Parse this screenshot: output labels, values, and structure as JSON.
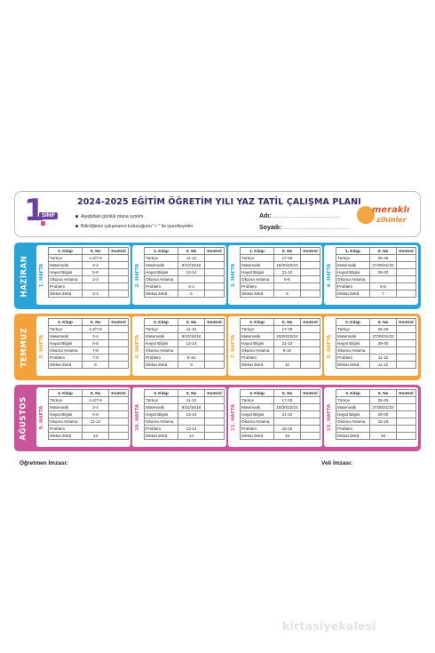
{
  "header": {
    "grade_number": "1",
    "grade_label": "SINIF",
    "title": "2024-2025 EĞİTİM ÖĞRETİM YILI YAZ TATİL ÇALIŞMA PLANI",
    "instruction_1": "Aşağıdaki günlük plana uyalım.",
    "instruction_2": "Bitirdiğimiz çalışmanın kutucuğunu \"✓\" ile işaretleyelim.",
    "name_label": "Adı:",
    "surname_label": "Soyadı:",
    "dots": "......................................",
    "logo_line1": "meraklı",
    "logo_line2": "zihinler"
  },
  "colors": {
    "haziran": "#2aa3d6",
    "temmuz": "#f3a13a",
    "agustos": "#c8559a"
  },
  "table_headers": {
    "subject": "",
    "pages": "S. No",
    "check": "Kontrol"
  },
  "months": [
    {
      "name": "HAZİRAN",
      "color": "#2aa3d6",
      "weeks": [
        {
          "label": "1. HAFTA",
          "book": "1. Kitap",
          "rows": [
            {
              "s": "Türkçe",
              "p": "1-2/7-8"
            },
            {
              "s": "Matematik",
              "p": "3-4"
            },
            {
              "s": "Hayat Bilgisi",
              "p": "5-6"
            },
            {
              "s": "Okuma Anlama",
              "p": "3-4"
            },
            {
              "s": "Problem",
              "p": ""
            },
            {
              "s": "Dikkat Zekâ",
              "p": "3-4"
            }
          ]
        },
        {
          "label": "2. HAFTA",
          "book": "1. Kitap",
          "rows": [
            {
              "s": "Türkçe",
              "p": "11-12"
            },
            {
              "s": "Matematik",
              "p": "9/10/15/16"
            },
            {
              "s": "Hayat Bilgisi",
              "p": "13-14"
            },
            {
              "s": "Okuma Anlama",
              "p": ""
            },
            {
              "s": "Problem",
              "p": "3-4"
            },
            {
              "s": "Dikkat Zekâ",
              "p": "5"
            }
          ]
        },
        {
          "label": "3. HAFTA",
          "book": "1. Kitap",
          "rows": [
            {
              "s": "Türkçe",
              "p": "17-18"
            },
            {
              "s": "Matematik",
              "p": "19/20/23/24"
            },
            {
              "s": "Hayat Bilgisi",
              "p": "21-22"
            },
            {
              "s": "Okuma Anlama",
              "p": "5-6"
            },
            {
              "s": "Problem",
              "p": ""
            },
            {
              "s": "Dikkat Zekâ",
              "p": "6"
            }
          ]
        },
        {
          "label": "4. HAFTA",
          "book": "1. Kitap",
          "rows": [
            {
              "s": "Türkçe",
              "p": "25-26"
            },
            {
              "s": "Matematik",
              "p": "27/28/31/32"
            },
            {
              "s": "Hayat Bilgisi",
              "p": "29-30"
            },
            {
              "s": "Okuma Anlama",
              "p": ""
            },
            {
              "s": "Problem",
              "p": "5-6"
            },
            {
              "s": "Dikkat Zekâ",
              "p": "7"
            }
          ]
        }
      ]
    },
    {
      "name": "TEMMUZ",
      "color": "#f3a13a",
      "weeks": [
        {
          "label": "5. HAFTA",
          "book": "2. Kitap",
          "rows": [
            {
              "s": "Türkçe",
              "p": "1-2/7-8"
            },
            {
              "s": "Matematik",
              "p": "3-4"
            },
            {
              "s": "Hayat Bilgisi",
              "p": "5-6"
            },
            {
              "s": "Okuma Anlama",
              "p": "7-8"
            },
            {
              "s": "Problem",
              "p": "7-8"
            },
            {
              "s": "Dikkat Zekâ",
              "p": "8"
            }
          ]
        },
        {
          "label": "6. HAFTA",
          "book": "2. Kitap",
          "rows": [
            {
              "s": "Türkçe",
              "p": "11-12"
            },
            {
              "s": "Matematik",
              "p": "9/10/15/16"
            },
            {
              "s": "Hayat Bilgisi",
              "p": "13-14"
            },
            {
              "s": "Okuma Anlama",
              "p": ""
            },
            {
              "s": "Problem",
              "p": "9-10"
            },
            {
              "s": "Dikkat Zekâ",
              "p": "9"
            }
          ]
        },
        {
          "label": "7. HAFTA",
          "book": "2. Kitap",
          "rows": [
            {
              "s": "Türkçe",
              "p": "17-18"
            },
            {
              "s": "Matematik",
              "p": "19/20/23/24"
            },
            {
              "s": "Hayat Bilgisi",
              "p": "21-22"
            },
            {
              "s": "Okuma Anlama",
              "p": "9-10"
            },
            {
              "s": "Problem",
              "p": ""
            },
            {
              "s": "Dikkat Zekâ",
              "p": "10"
            }
          ]
        },
        {
          "label": "8. HAFTA",
          "book": "2. Kitap",
          "rows": [
            {
              "s": "Türkçe",
              "p": "25-26"
            },
            {
              "s": "Matematik",
              "p": "27/28/31/32"
            },
            {
              "s": "Hayat Bilgisi",
              "p": "29-30"
            },
            {
              "s": "Okuma Anlama",
              "p": ""
            },
            {
              "s": "Problem",
              "p": "11-12"
            },
            {
              "s": "Dikkat Zekâ",
              "p": "11-12"
            }
          ]
        }
      ]
    },
    {
      "name": "AĞUSTOS",
      "color": "#c8559a",
      "weeks": [
        {
          "label": "9. HAFTA",
          "book": "3. Kitap",
          "rows": [
            {
              "s": "Türkçe",
              "p": "1-2/7-8"
            },
            {
              "s": "Matematik",
              "p": "3-4"
            },
            {
              "s": "Hayat Bilgisi",
              "p": "5-6"
            },
            {
              "s": "Okuma Anlama",
              "p": "11-12"
            },
            {
              "s": "Problem",
              "p": ""
            },
            {
              "s": "Dikkat Zekâ",
              "p": "13"
            }
          ]
        },
        {
          "label": "10. HAFTA",
          "book": "3. Kitap",
          "rows": [
            {
              "s": "Türkçe",
              "p": "11-12"
            },
            {
              "s": "Matematik",
              "p": "9/10/15/16"
            },
            {
              "s": "Hayat Bilgisi",
              "p": "13-14"
            },
            {
              "s": "Okuma Anlama",
              "p": ""
            },
            {
              "s": "Problem",
              "p": "13-14"
            },
            {
              "s": "Dikkat Zekâ",
              "p": "14"
            }
          ]
        },
        {
          "label": "11. HAFTA",
          "book": "3. Kitap",
          "rows": [
            {
              "s": "Türkçe",
              "p": "17-18"
            },
            {
              "s": "Matematik",
              "p": "19/20/23/24"
            },
            {
              "s": "Hayat Bilgisi",
              "p": "21-22"
            },
            {
              "s": "Okuma Anlama",
              "p": ""
            },
            {
              "s": "Problem",
              "p": "15-16"
            },
            {
              "s": "Dikkat Zekâ",
              "p": "15"
            }
          ]
        },
        {
          "label": "12. HAFTA",
          "book": "3. Kitap",
          "rows": [
            {
              "s": "Türkçe",
              "p": "25-26"
            },
            {
              "s": "Matematik",
              "p": "27/28/31/32"
            },
            {
              "s": "Hayat Bilgisi",
              "p": "29-30"
            },
            {
              "s": "Okuma Anlama",
              "p": "15-16"
            },
            {
              "s": "Problem",
              "p": ""
            },
            {
              "s": "Dikkat Zekâ",
              "p": "16"
            }
          ]
        }
      ]
    }
  ],
  "footer": {
    "teacher_sig": "Öğretmen İmzası:",
    "parent_sig": "Veli İmzası:"
  },
  "watermark": "kirtasiyekalesi"
}
